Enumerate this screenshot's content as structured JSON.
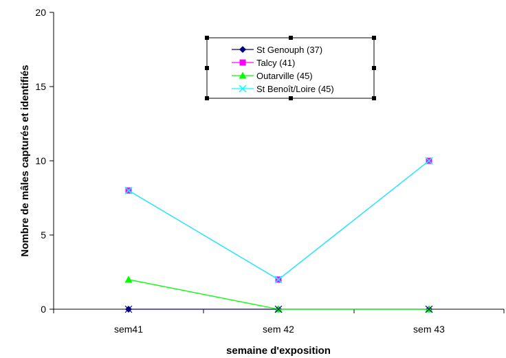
{
  "chart_data": {
    "type": "line",
    "title": "",
    "xlabel": "semaine d'exposition",
    "ylabel": "Nombre de mâles capturés et identifiés",
    "categories": [
      "sem41",
      "sem  42",
      "sem  43"
    ],
    "ylim": [
      0,
      20
    ],
    "yticks": [
      "0",
      "5",
      "10",
      "15",
      "20"
    ],
    "grid": false,
    "legend_position": "top-center",
    "series": [
      {
        "name": "St Genouph (37)",
        "values": [
          0,
          0,
          0
        ],
        "color": "#000080",
        "marker": "diamond"
      },
      {
        "name": "Talcy (41)",
        "values": [
          8,
          2,
          10
        ],
        "color": "#FF00FF",
        "marker": "square"
      },
      {
        "name": "Outarville (45)",
        "values": [
          2,
          0,
          0
        ],
        "color": "#00FF00",
        "marker": "triangle"
      },
      {
        "name": "St Benoît/Loire (45)",
        "values": [
          8,
          2,
          10
        ],
        "color": "#00FFFF",
        "marker": "x"
      }
    ]
  }
}
